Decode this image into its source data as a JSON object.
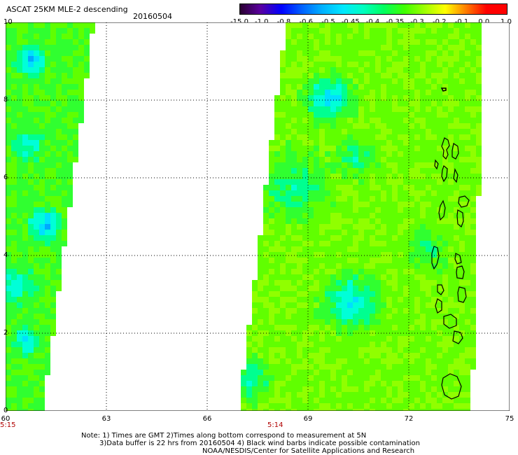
{
  "header": {
    "title": "ASCAT 25KM MLE-2 descending",
    "date": "20160504"
  },
  "colorbar": {
    "ticks": [
      "-15.0",
      "-1.0",
      "-0.8",
      "-0.6",
      "-0.5",
      "-0.45",
      "-0.4",
      "-0.35",
      "-0.3",
      "-0.2",
      "-0.1",
      "0.0",
      "1.0"
    ],
    "colors": [
      "#2a0030",
      "#5a00a0",
      "#0000ff",
      "#0060ff",
      "#00b0ff",
      "#00e8ff",
      "#00ffc0",
      "#00ff60",
      "#40ff00",
      "#a0ff00",
      "#ffff00",
      "#ff8000",
      "#ff0000"
    ]
  },
  "axes": {
    "y_ticks": [
      "0",
      "2",
      "4",
      "6",
      "8",
      "10"
    ],
    "x_ticks": [
      "60",
      "63",
      "66",
      "69",
      "72",
      "75"
    ]
  },
  "swaths": [
    {
      "time": "5:15"
    },
    {
      "time": "5:14"
    }
  ],
  "notes": {
    "line1": "Note: 1) Times are GMT 2)Times along bottom correspond to measurement at 5N",
    "line2": "3)Data buffer is 22 hrs from 20160504 4) Black wind barbs indicate possible contamination",
    "line3": "NOAA/NESDIS/Center for Satellite Applications and Research"
  }
}
